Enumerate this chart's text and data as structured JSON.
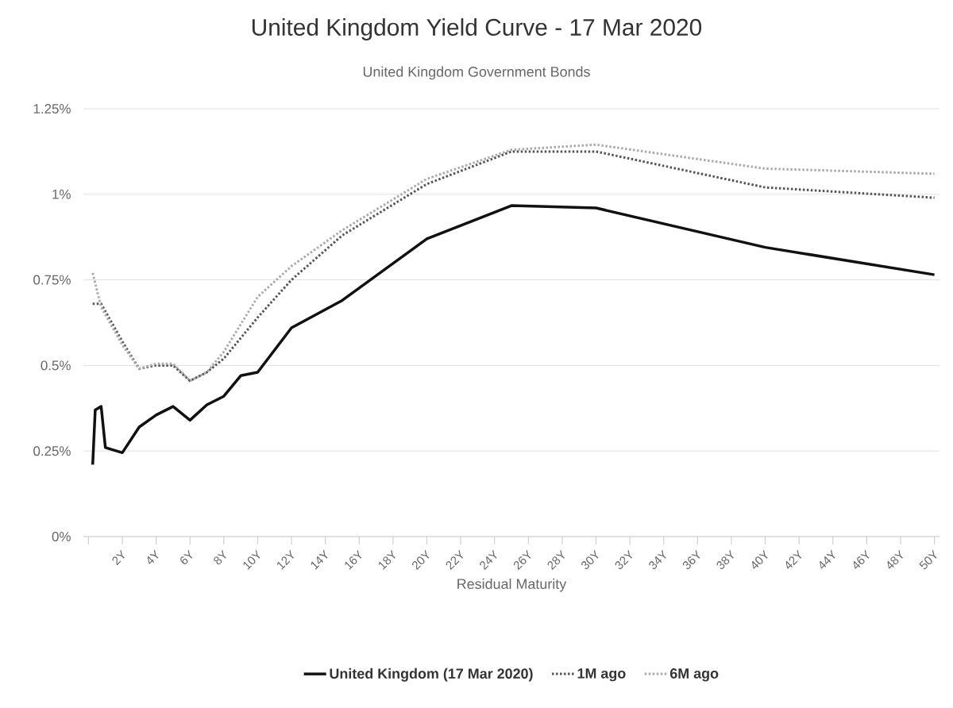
{
  "chart_data": {
    "type": "line",
    "title": "United Kingdom Yield Curve - 17 Mar 2020",
    "subtitle": "United Kingdom Government Bonds",
    "xlabel": "Residual Maturity",
    "xlim": [
      -0.3,
      50.3
    ],
    "ylim": [
      0,
      1.25
    ],
    "xticks": [
      {
        "value": 0,
        "label": null
      },
      {
        "value": 2,
        "label": "2Y"
      },
      {
        "value": 4,
        "label": "4Y"
      },
      {
        "value": 6,
        "label": "6Y"
      },
      {
        "value": 8,
        "label": "8Y"
      },
      {
        "value": 10,
        "label": "10Y"
      },
      {
        "value": 12,
        "label": "12Y"
      },
      {
        "value": 14,
        "label": "14Y"
      },
      {
        "value": 16,
        "label": "16Y"
      },
      {
        "value": 18,
        "label": "18Y"
      },
      {
        "value": 20,
        "label": "20Y"
      },
      {
        "value": 22,
        "label": "22Y"
      },
      {
        "value": 24,
        "label": "24Y"
      },
      {
        "value": 26,
        "label": "26Y"
      },
      {
        "value": 28,
        "label": "28Y"
      },
      {
        "value": 30,
        "label": "30Y"
      },
      {
        "value": 32,
        "label": "32Y"
      },
      {
        "value": 34,
        "label": "34Y"
      },
      {
        "value": 36,
        "label": "36Y"
      },
      {
        "value": 38,
        "label": "38Y"
      },
      {
        "value": 40,
        "label": "40Y"
      },
      {
        "value": 42,
        "label": "42Y"
      },
      {
        "value": 44,
        "label": "44Y"
      },
      {
        "value": 46,
        "label": "46Y"
      },
      {
        "value": 48,
        "label": "48Y"
      },
      {
        "value": 50,
        "label": "50Y"
      }
    ],
    "yticks": [
      {
        "value": 0,
        "label": "0%"
      },
      {
        "value": 0.25,
        "label": "0.25%"
      },
      {
        "value": 0.5,
        "label": "0.5%"
      },
      {
        "value": 0.75,
        "label": "0.75%"
      },
      {
        "value": 1,
        "label": "1%"
      },
      {
        "value": 1.25,
        "label": "1.25%"
      }
    ],
    "grid": "y",
    "legend": "bottom",
    "marker": "none",
    "series": [
      {
        "name": "United Kingdom (17 Mar 2020)",
        "color": "#111111",
        "line_style": "solid",
        "x": [
          0.25,
          0.4,
          0.75,
          1,
          2,
          3,
          4,
          5,
          6,
          7,
          8,
          9,
          10,
          12,
          15,
          20,
          25,
          30,
          40,
          50
        ],
        "values": [
          0.21,
          0.37,
          0.38,
          0.26,
          0.245,
          0.32,
          0.355,
          0.38,
          0.34,
          0.385,
          0.41,
          0.47,
          0.48,
          0.61,
          0.69,
          0.87,
          0.967,
          0.96,
          0.845,
          0.765
        ]
      },
      {
        "name": "1M ago",
        "color": "#555555",
        "line_style": "dotted",
        "x": [
          0.25,
          0.75,
          2,
          3,
          4,
          5,
          6,
          7,
          8,
          10,
          12,
          15,
          20,
          25,
          30,
          40,
          50
        ],
        "values": [
          0.68,
          0.68,
          0.57,
          0.49,
          0.5,
          0.5,
          0.455,
          0.48,
          0.52,
          0.64,
          0.75,
          0.88,
          1.03,
          1.125,
          1.125,
          1.02,
          0.99
        ]
      },
      {
        "name": "6M ago",
        "color": "#aaaaaa",
        "line_style": "dotted",
        "x": [
          0.25,
          0.75,
          2,
          3,
          4,
          5,
          6,
          7,
          8,
          10,
          12,
          15,
          20,
          25,
          30,
          40,
          50
        ],
        "values": [
          0.77,
          0.67,
          0.56,
          0.49,
          0.505,
          0.505,
          0.455,
          0.48,
          0.54,
          0.7,
          0.79,
          0.895,
          1.045,
          1.13,
          1.145,
          1.075,
          1.06
        ]
      }
    ]
  }
}
